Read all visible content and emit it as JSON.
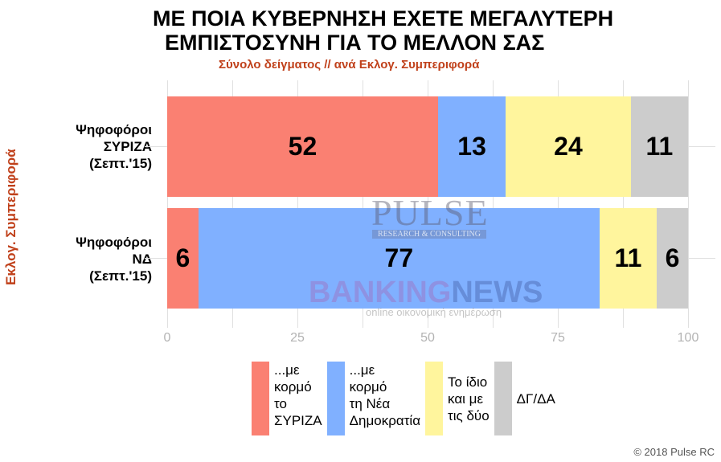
{
  "chart_data": {
    "type": "bar",
    "orientation": "horizontal",
    "stacked": true,
    "title": "ΜΕ ΠΟΙΑ ΚΥΒΕΡΝΗΣΗ ΕΧΕΤΕ ΜΕΓΑΛΥΤΕΡΗ ΕΜΠΙΣΤΟΣΥΝΗ ΓΙΑ ΤΟ ΜΕΛΛΟΝ ΣΑΣ",
    "title_lines": [
      "ΜΕ ΠΟΙΑ ΚΥΒΕΡΝΗΣΗ ΕΧΕΤΕ ΜΕΓΑΛΥΤΕΡΗ",
      "ΕΜΠΙΣΤΟΣΥΝΗ ΓΙΑ ΤΟ ΜΕΛΛΟΝ ΣΑΣ"
    ],
    "subtitle": "Σύνολο δείγματος // ανά Εκλογ. Συμπεριφορά",
    "ylabel": "Εκλογ. Συμπεριφορά",
    "xlabel": "",
    "xlim": [
      0,
      100
    ],
    "xticks": [
      "0",
      "25",
      "50",
      "75",
      "100"
    ],
    "categories": [
      "Ψηφοφόροι ΣΥΡΙΖΑ (Σεπτ.'15)",
      "Ψηφοφόροι ΝΔ (Σεπτ.'15)"
    ],
    "category_lines": [
      [
        "Ψηφοφόροι",
        "ΣΥΡΙΖΑ",
        "(Σεπτ.'15)"
      ],
      [
        "Ψηφοφόροι",
        "ΝΔ",
        "(Σεπτ.'15)"
      ]
    ],
    "series": [
      {
        "name": "...με κορμό το ΣΥΡΙΖΑ",
        "color": "#fa8072",
        "values": [
          52,
          6
        ]
      },
      {
        "name": "...με κορμό τη Νέα Δημοκρατία",
        "color": "#80b0ff",
        "values": [
          13,
          77
        ]
      },
      {
        "name": "Το ίδιο και με τις δύο",
        "color": "#fff59d",
        "values": [
          24,
          11
        ]
      },
      {
        "name": "ΔΓ/ΔΑ",
        "color": "#cccccc",
        "values": [
          11,
          6
        ]
      }
    ],
    "legend_position": "bottom",
    "grid": true
  },
  "legend": [
    {
      "lines": [
        "...με",
        "κορμό",
        "το",
        "ΣΥΡΙΖΑ"
      ]
    },
    {
      "lines": [
        "...με",
        "κορμό",
        "τη Νέα",
        "Δημοκρατία"
      ]
    },
    {
      "lines": [
        "Το ίδιο",
        "και με",
        "τις δύο"
      ]
    },
    {
      "lines": [
        "ΔΓ/ΔΑ"
      ]
    }
  ],
  "watermarks": {
    "pulse": "PULSE",
    "pulse_sub": "RESEARCH & CONSULTING",
    "bn_a": "BANKING",
    "bn_b": "NEWS",
    "bn_sub": "online οικονομική ενημέρωση"
  },
  "copyright": "© 2018 Pulse RC"
}
